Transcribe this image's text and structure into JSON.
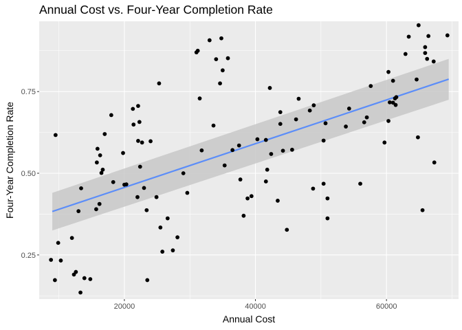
{
  "chart_data": {
    "type": "scatter",
    "title": "Annual Cost vs. Four-Year Completion Rate",
    "xlabel": "Annual Cost",
    "ylabel": "Four-Year Completion Rate",
    "xlim": [
      7000,
      71000
    ],
    "ylim": [
      0.115,
      0.965
    ],
    "x_ticks": [
      20000,
      40000,
      60000
    ],
    "x_tick_labels": [
      "20000",
      "40000",
      "60000"
    ],
    "y_ticks": [
      0.25,
      0.5,
      0.75
    ],
    "y_tick_labels": [
      "0.25",
      "0.50",
      "0.75"
    ],
    "grid": true,
    "trend": {
      "method": "linear fit with confidence band",
      "x": [
        9000,
        69500
      ],
      "y": [
        0.383,
        0.788
      ],
      "band_lower": [
        0.325,
        0.725
      ],
      "band_upper": [
        0.44,
        0.85
      ]
    },
    "colors": {
      "panel": "#ebebeb",
      "grid": "#ffffff",
      "point": "#000000",
      "trend_line": "#5b8df9",
      "band": "#c8c8c8"
    },
    "points": [
      [
        8800,
        0.235
      ],
      [
        9400,
        0.173
      ],
      [
        9500,
        0.617
      ],
      [
        9900,
        0.287
      ],
      [
        10300,
        0.233
      ],
      [
        12000,
        0.302
      ],
      [
        12300,
        0.19
      ],
      [
        12600,
        0.198
      ],
      [
        13000,
        0.384
      ],
      [
        13300,
        0.135
      ],
      [
        13400,
        0.454
      ],
      [
        13900,
        0.179
      ],
      [
        14800,
        0.176
      ],
      [
        15700,
        0.39
      ],
      [
        15800,
        0.533
      ],
      [
        15900,
        0.575
      ],
      [
        16200,
        0.406
      ],
      [
        16300,
        0.555
      ],
      [
        16500,
        0.501
      ],
      [
        16700,
        0.511
      ],
      [
        17000,
        0.62
      ],
      [
        18000,
        0.678
      ],
      [
        18300,
        0.473
      ],
      [
        19800,
        0.562
      ],
      [
        20000,
        0.465
      ],
      [
        20300,
        0.466
      ],
      [
        21300,
        0.697
      ],
      [
        21400,
        0.649
      ],
      [
        22000,
        0.427
      ],
      [
        22100,
        0.706
      ],
      [
        22100,
        0.599
      ],
      [
        22300,
        0.657
      ],
      [
        22400,
        0.52
      ],
      [
        22700,
        0.594
      ],
      [
        23000,
        0.455
      ],
      [
        23400,
        0.387
      ],
      [
        23500,
        0.173
      ],
      [
        24000,
        0.598
      ],
      [
        24900,
        0.427
      ],
      [
        25300,
        0.775
      ],
      [
        25500,
        0.334
      ],
      [
        25800,
        0.26
      ],
      [
        26600,
        0.362
      ],
      [
        27400,
        0.264
      ],
      [
        28100,
        0.304
      ],
      [
        29000,
        0.5
      ],
      [
        29600,
        0.44
      ],
      [
        31000,
        0.87
      ],
      [
        31200,
        0.875
      ],
      [
        31500,
        0.729
      ],
      [
        31800,
        0.57
      ],
      [
        33000,
        0.907
      ],
      [
        33600,
        0.646
      ],
      [
        34000,
        0.849
      ],
      [
        34600,
        0.775
      ],
      [
        34800,
        0.913
      ],
      [
        35000,
        0.815
      ],
      [
        35300,
        0.524
      ],
      [
        35800,
        0.852
      ],
      [
        36500,
        0.571
      ],
      [
        37500,
        0.585
      ],
      [
        37700,
        0.481
      ],
      [
        38200,
        0.37
      ],
      [
        38800,
        0.423
      ],
      [
        39400,
        0.43
      ],
      [
        40300,
        0.604
      ],
      [
        41600,
        0.602
      ],
      [
        41600,
        0.475
      ],
      [
        41800,
        0.511
      ],
      [
        42200,
        0.761
      ],
      [
        42400,
        0.559
      ],
      [
        43400,
        0.416
      ],
      [
        43800,
        0.687
      ],
      [
        43800,
        0.651
      ],
      [
        44200,
        0.569
      ],
      [
        44800,
        0.327
      ],
      [
        45600,
        0.572
      ],
      [
        46200,
        0.665
      ],
      [
        46600,
        0.728
      ],
      [
        48300,
        0.692
      ],
      [
        48900,
        0.708
      ],
      [
        48800,
        0.453
      ],
      [
        50400,
        0.468
      ],
      [
        50400,
        0.6
      ],
      [
        50700,
        0.653
      ],
      [
        51000,
        0.362
      ],
      [
        51000,
        0.423
      ],
      [
        53800,
        0.643
      ],
      [
        54300,
        0.698
      ],
      [
        56000,
        0.468
      ],
      [
        56600,
        0.656
      ],
      [
        57000,
        0.671
      ],
      [
        57600,
        0.767
      ],
      [
        59700,
        0.594
      ],
      [
        60300,
        0.81
      ],
      [
        60300,
        0.66
      ],
      [
        60500,
        0.717
      ],
      [
        61000,
        0.716
      ],
      [
        61000,
        0.783
      ],
      [
        61300,
        0.729
      ],
      [
        61400,
        0.709
      ],
      [
        61500,
        0.733
      ],
      [
        62900,
        0.865
      ],
      [
        63400,
        0.918
      ],
      [
        64600,
        0.787
      ],
      [
        64900,
        0.953
      ],
      [
        64800,
        0.61
      ],
      [
        65500,
        0.387
      ],
      [
        65900,
        0.886
      ],
      [
        65900,
        0.868
      ],
      [
        66200,
        0.85
      ],
      [
        66400,
        0.92
      ],
      [
        67200,
        0.842
      ],
      [
        67300,
        0.533
      ],
      [
        69300,
        0.922
      ]
    ]
  }
}
